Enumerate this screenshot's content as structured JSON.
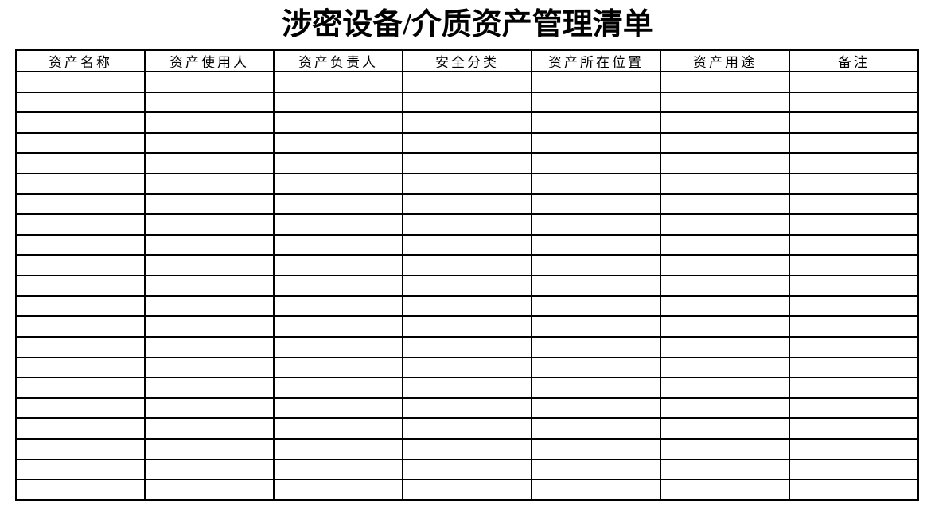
{
  "document": {
    "title": "涉密设备/介质资产管理清单"
  },
  "table": {
    "columns": [
      {
        "label": "资产名称"
      },
      {
        "label": "资产使用人"
      },
      {
        "label": "资产负责人"
      },
      {
        "label": "安全分类"
      },
      {
        "label": "资产所在位置"
      },
      {
        "label": "资产用途"
      },
      {
        "label": "备注"
      }
    ],
    "empty_row_count": 21,
    "empty_cell_value": ""
  },
  "colors": {
    "background": "#ffffff",
    "text": "#000000",
    "border": "#000000"
  }
}
